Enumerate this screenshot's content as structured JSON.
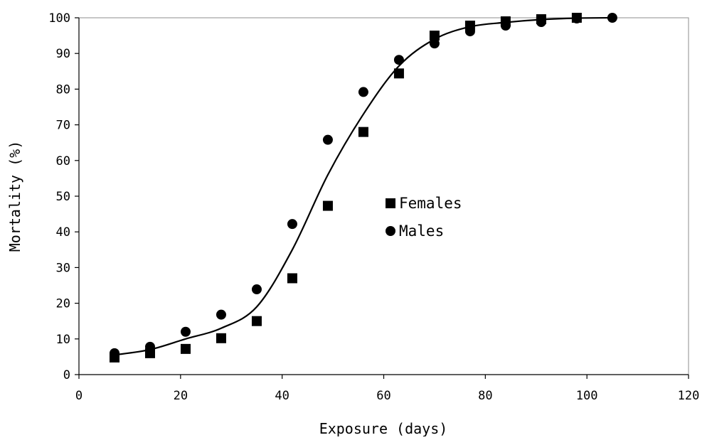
{
  "chart_data": {
    "type": "scatter",
    "title": "",
    "xlabel": "Exposure (days)",
    "ylabel": "Mortality (%)",
    "xlim": [
      0,
      120
    ],
    "ylim": [
      0,
      100
    ],
    "x_ticks": [
      "0",
      "20",
      "40",
      "60",
      "80",
      "100",
      "120"
    ],
    "y_ticks": [
      "0",
      "10",
      "20",
      "30",
      "40",
      "50",
      "60",
      "70",
      "80",
      "90",
      "100"
    ],
    "grid": false,
    "legend_position": "center-right",
    "series": [
      {
        "name": "Females",
        "marker": "square",
        "color": "#000000",
        "x": [
          7,
          14,
          21,
          28,
          35,
          42,
          49,
          56,
          63,
          70,
          77,
          84,
          91,
          98
        ],
        "y": [
          4.8,
          6,
          7.2,
          10.2,
          15,
          27,
          47.3,
          68,
          84.4,
          95,
          97.8,
          99,
          99.6,
          100
        ]
      },
      {
        "name": "Males",
        "marker": "circle",
        "color": "#000000",
        "x": [
          7,
          14,
          21,
          28,
          35,
          42,
          49,
          56,
          63,
          70,
          77,
          84,
          91,
          98,
          105
        ],
        "y": [
          6,
          7.8,
          12,
          16.8,
          23.9,
          42.2,
          65.8,
          79.2,
          88.2,
          92.8,
          96.2,
          97.8,
          98.8,
          99.8,
          100
        ]
      },
      {
        "type": "line",
        "color": "#000000",
        "x": [
          7,
          14,
          21,
          28,
          35,
          42,
          49,
          56,
          63,
          70,
          77,
          84,
          91,
          98,
          105
        ],
        "y": [
          5.5,
          7,
          10,
          13,
          19,
          35,
          56,
          73,
          86.5,
          94,
          97.5,
          98.7,
          99.5,
          99.9,
          100
        ]
      }
    ]
  }
}
